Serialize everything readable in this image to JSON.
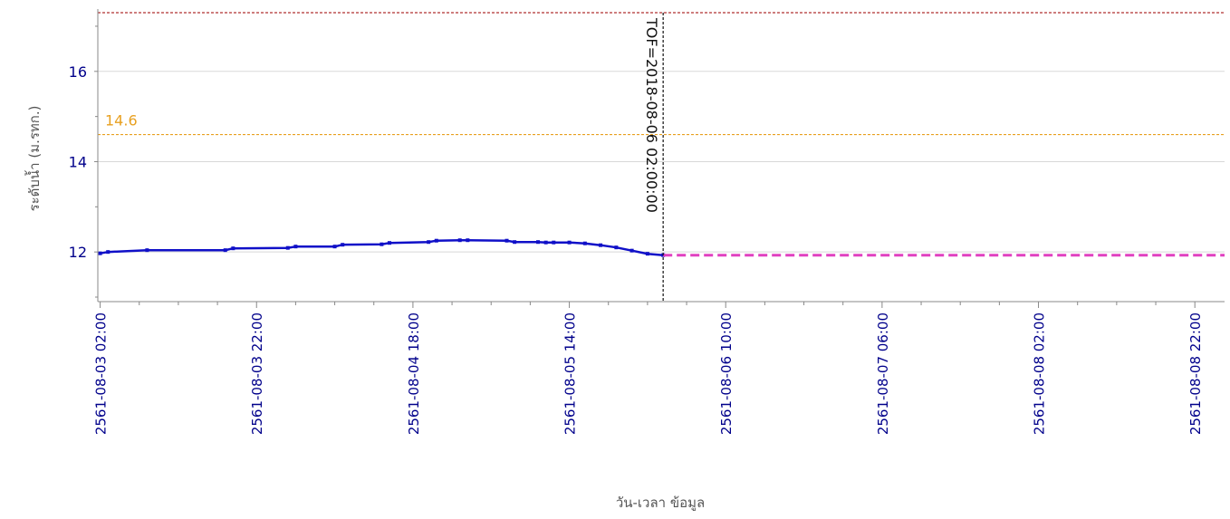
{
  "chart_data": {
    "type": "line",
    "xlabel": "วัน-เวลา ข้อมูล",
    "ylabel": "ระดับน้ำ (ม.รทก.)",
    "ylim": [
      10.9,
      17.3
    ],
    "y_ticks": [
      12,
      14,
      16
    ],
    "x_ticks": [
      "2561-08-03 02:00",
      "2561-08-03 22:00",
      "2561-08-04 18:00",
      "2561-08-05 14:00",
      "2561-08-06 10:00",
      "2561-08-07 06:00",
      "2561-08-08 02:00",
      "2561-08-08 22:00"
    ],
    "x_tick_hours": [
      0,
      20,
      40,
      60,
      80,
      100,
      120,
      140
    ],
    "xlim_hours": [
      -0.3,
      143.8
    ],
    "series": [
      {
        "kind": "observed",
        "color": "#1010c8",
        "x_hours": [
          0,
          1,
          6,
          16,
          17,
          24,
          25,
          30,
          31,
          36,
          37,
          42,
          43,
          46,
          47,
          52,
          53,
          56,
          57,
          58,
          60,
          62,
          64,
          66,
          68,
          70,
          72
        ],
        "values": [
          11.97,
          12.0,
          12.04,
          12.04,
          12.08,
          12.09,
          12.12,
          12.12,
          12.16,
          12.17,
          12.2,
          12.22,
          12.25,
          12.26,
          12.26,
          12.25,
          12.22,
          12.22,
          12.21,
          12.21,
          12.21,
          12.19,
          12.15,
          12.1,
          12.03,
          11.96,
          11.93
        ]
      },
      {
        "kind": "forecast",
        "color": "#e040c0",
        "x_hours": [
          72,
          143.8
        ],
        "values": [
          11.93,
          11.93
        ]
      }
    ],
    "reference_lines": [
      {
        "value": 17.3,
        "color": "#b03030",
        "label": ""
      },
      {
        "value": 14.6,
        "color": "#e8a020",
        "label": "14.6"
      }
    ],
    "tof_marker": {
      "x_hours": 72,
      "label": "TOF=2018-08-06 02:00:00"
    },
    "grid": "horizontal",
    "colors": {
      "tick_text": "#00008b",
      "frame": "#888888",
      "grid": "#d8d8d8"
    }
  }
}
